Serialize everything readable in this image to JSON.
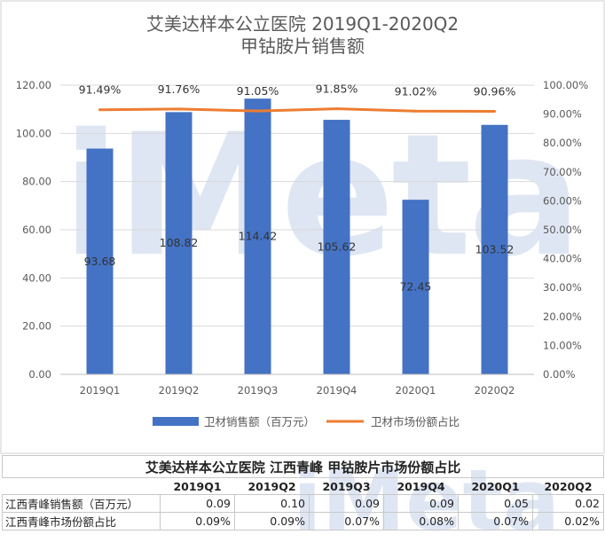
{
  "watermark": "iMeta",
  "chart_data": {
    "type": "bar",
    "title_lines": [
      "艾美达样本公立医院 2019Q1-2020Q2",
      "甲钴胺片销售额"
    ],
    "categories": [
      "2019Q1",
      "2019Q2",
      "2019Q3",
      "2019Q4",
      "2020Q1",
      "2020Q2"
    ],
    "series": [
      {
        "name": "卫材销售额（百万元）",
        "type": "bar",
        "axis": "left",
        "color": "#4472C4",
        "values": [
          93.68,
          108.82,
          114.42,
          105.62,
          72.45,
          103.52
        ],
        "labels": [
          "93.68",
          "108.82",
          "114.42",
          "105.62",
          "72.45",
          "103.52"
        ]
      },
      {
        "name": "卫材市场份额占比",
        "type": "line",
        "axis": "right",
        "color": "#ED7D31",
        "values": [
          91.49,
          91.76,
          91.05,
          91.85,
          91.02,
          90.96
        ],
        "labels": [
          "91.49%",
          "91.76%",
          "91.05%",
          "91.85%",
          "91.02%",
          "90.96%"
        ]
      }
    ],
    "y_left": {
      "min": 0,
      "max": 120,
      "ticks": [
        "0.00",
        "20.00",
        "40.00",
        "60.00",
        "80.00",
        "100.00",
        "120.00"
      ]
    },
    "y_right": {
      "min": 0,
      "max": 100,
      "ticks": [
        "0.00%",
        "10.00%",
        "20.00%",
        "30.00%",
        "40.00%",
        "50.00%",
        "60.00%",
        "70.00%",
        "80.00%",
        "90.00%",
        "100.00%"
      ]
    },
    "grid": true,
    "legend": "bottom"
  },
  "table": {
    "title": "艾美达样本公立医院 江西青峰 甲钴胺片市场份额占比",
    "headers": [
      "",
      "2019Q1",
      "2019Q2",
      "2019Q3",
      "2019Q4",
      "2020Q1",
      "2020Q2"
    ],
    "rows": [
      {
        "label": "江西青峰销售额（百万元）",
        "values": [
          "0.09",
          "0.10",
          "0.09",
          "0.09",
          "0.05",
          "0.02"
        ]
      },
      {
        "label": "江西青峰市场份额占比",
        "values": [
          "0.09%",
          "0.09%",
          "0.07%",
          "0.08%",
          "0.07%",
          "0.02%"
        ]
      }
    ]
  }
}
